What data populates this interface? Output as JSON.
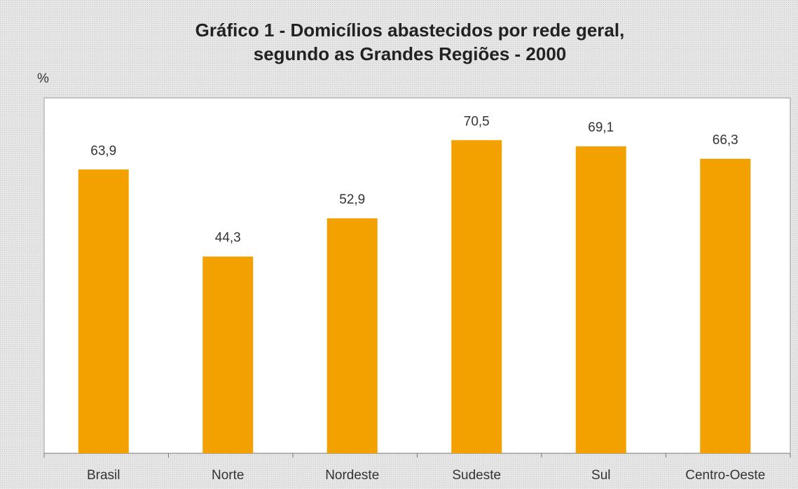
{
  "chart_data": {
    "type": "bar",
    "title": "Gráfico 1 - Domicílios abastecidos por rede geral,",
    "subtitle": "segundo as Grandes Regiões - 2000",
    "ylabel": "%",
    "categories": [
      "Brasil",
      "Norte",
      "Nordeste",
      "Sudeste",
      "Sul",
      "Centro-Oeste"
    ],
    "values": [
      63.9,
      44.3,
      52.9,
      70.5,
      69.1,
      66.3
    ],
    "value_labels": [
      "63,9",
      "44,3",
      "52,9",
      "70,5",
      "69,1",
      "66,3"
    ],
    "color": "#f2a100",
    "ylim": [
      0,
      80
    ]
  }
}
